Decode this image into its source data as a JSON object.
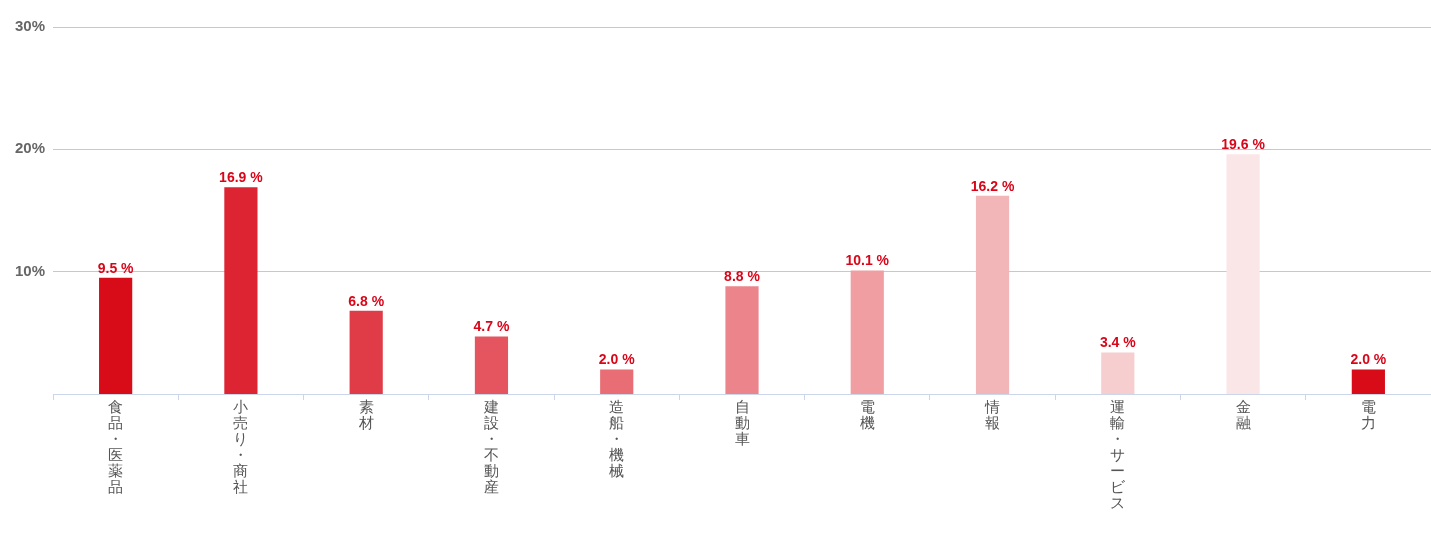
{
  "chart_data": {
    "type": "bar",
    "categories": [
      "食品・医薬品",
      "小売り・商社",
      "素材",
      "建設・不動産",
      "造船・機械",
      "自動車",
      "電機",
      "情報",
      "運輸・サービス",
      "金融",
      "電力"
    ],
    "values": [
      9.5,
      16.9,
      6.8,
      4.7,
      2.0,
      8.8,
      10.1,
      16.2,
      3.4,
      19.6,
      2.0
    ],
    "colors": [
      "#d80c18",
      "#dc2432",
      "#e03c48",
      "#e45560",
      "#e86d75",
      "#ec858b",
      "#f09ea2",
      "#f3b6b8",
      "#f7ced0",
      "#fbe6e7",
      "#d80c18"
    ],
    "value_labels": [
      "9.5 %",
      "16.9 %",
      "6.8 %",
      "4.7 %",
      "2.0 %",
      "8.8 %",
      "10.1 %",
      "16.2 %",
      "3.4 %",
      "19.6 %",
      "2.0 %"
    ],
    "ylim": [
      0,
      30
    ],
    "yticks": [
      {
        "value": 10,
        "label": "10%"
      },
      {
        "value": 20,
        "label": "20%"
      },
      {
        "value": 30,
        "label": "30%"
      }
    ],
    "grid": "y"
  }
}
